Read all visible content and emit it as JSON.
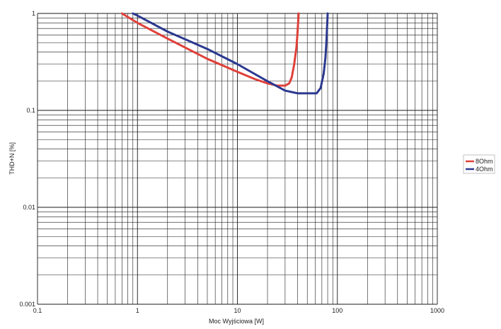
{
  "chart_data": {
    "type": "line",
    "title": "",
    "xlabel": "Moc Wyjściowa [W]",
    "ylabel": "THD+N [%]",
    "xscale": "log",
    "yscale": "log",
    "xlim": [
      0.1,
      1000
    ],
    "ylim": [
      0.001,
      1
    ],
    "grid": true,
    "legend_position": "right",
    "x_ticks": [
      "0.1",
      "1",
      "10",
      "100",
      "1000"
    ],
    "y_ticks": [
      "0.001",
      "0.01",
      "0.1",
      "1"
    ],
    "series": [
      {
        "name": "8Ohm",
        "color": "#e0403a",
        "points": [
          [
            0.7,
            1.0
          ],
          [
            1.0,
            0.8
          ],
          [
            2.0,
            0.55
          ],
          [
            5.0,
            0.34
          ],
          [
            10.0,
            0.25
          ],
          [
            15.0,
            0.21
          ],
          [
            20.0,
            0.19
          ],
          [
            25.0,
            0.18
          ],
          [
            30.0,
            0.18
          ],
          [
            33.0,
            0.19
          ],
          [
            35.0,
            0.22
          ],
          [
            37.0,
            0.3
          ],
          [
            39.0,
            0.45
          ],
          [
            40.0,
            0.65
          ],
          [
            41.0,
            1.0
          ]
        ]
      },
      {
        "name": "4Ohm",
        "color": "#2b3990",
        "points": [
          [
            0.9,
            1.0
          ],
          [
            1.0,
            0.95
          ],
          [
            2.0,
            0.65
          ],
          [
            5.0,
            0.43
          ],
          [
            10.0,
            0.3
          ],
          [
            20.0,
            0.2
          ],
          [
            30.0,
            0.16
          ],
          [
            40.0,
            0.15
          ],
          [
            50.0,
            0.15
          ],
          [
            62.0,
            0.15
          ],
          [
            68.0,
            0.17
          ],
          [
            73.0,
            0.24
          ],
          [
            76.0,
            0.35
          ],
          [
            78.0,
            0.55
          ],
          [
            80.0,
            1.0
          ]
        ]
      }
    ]
  }
}
